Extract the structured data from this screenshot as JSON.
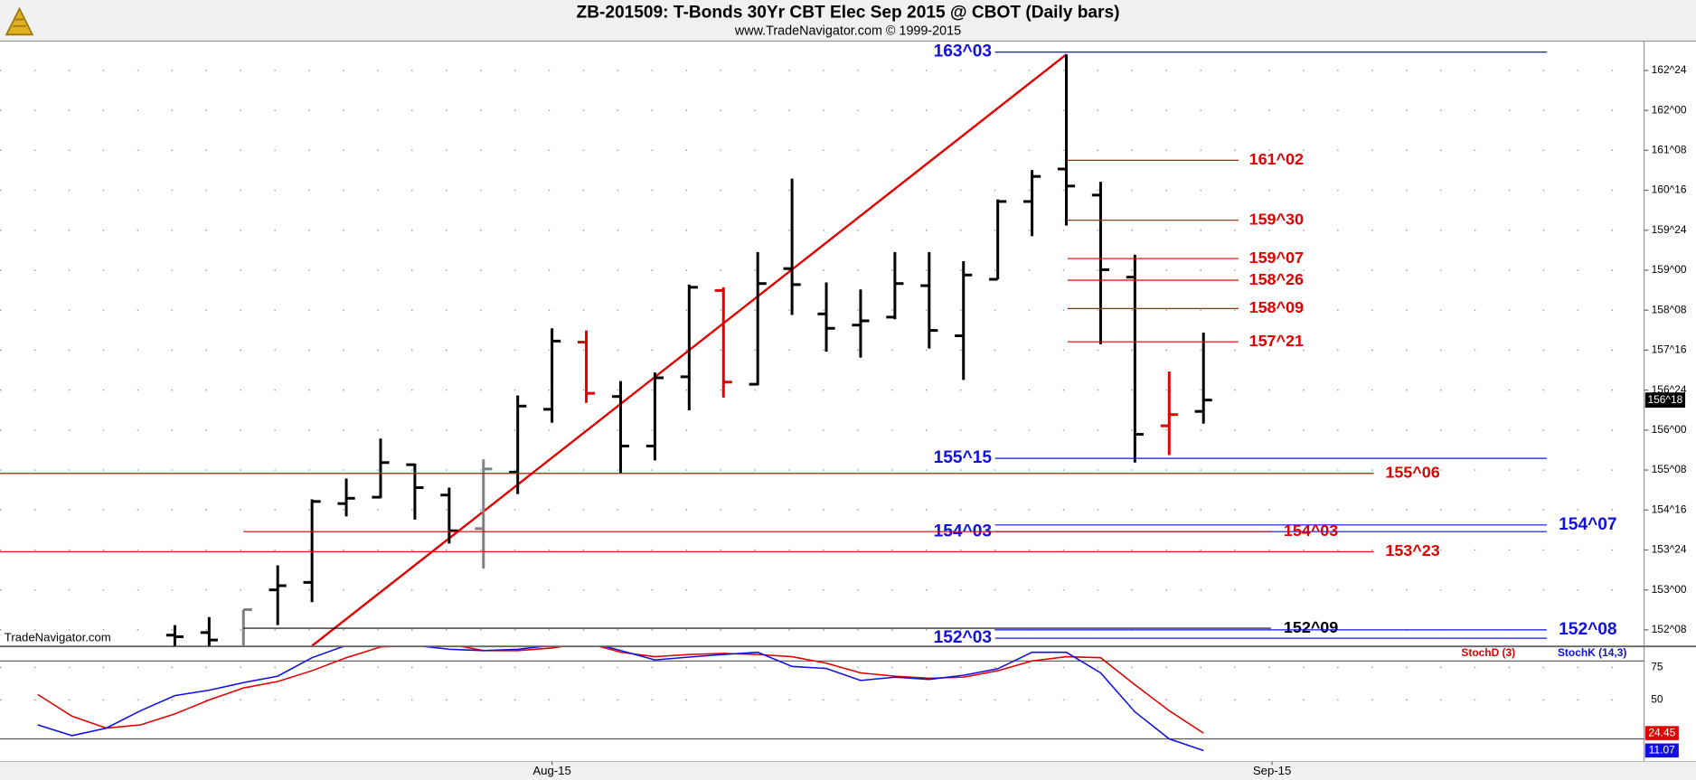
{
  "chart_data": [
    {
      "type": "ohlc",
      "title": "ZB-201509:  T-Bonds 30Yr CBT Elec Sep 2015 @ CBOT  (Daily bars)",
      "subtitle": "www.TradeNavigator.com © 1999-2015",
      "watermark": "TradeNavigator.com",
      "x": [
        0,
        1,
        2,
        3,
        4,
        5,
        6,
        7,
        8,
        9,
        10,
        11,
        12,
        13,
        14,
        15,
        16,
        17,
        18,
        19,
        20,
        21,
        22,
        23,
        24,
        25,
        26,
        27,
        28,
        29,
        30
      ],
      "open": [
        152.15,
        152.2,
        151.9,
        153.0,
        153.14,
        154.62,
        154.74,
        155.35,
        154.78,
        154.15,
        155.21,
        156.39,
        157.65,
        156.63,
        155.7,
        157.0,
        158.62,
        156.86,
        159.03,
        158.18,
        157.97,
        158.12,
        158.71,
        157.77,
        158.83,
        160.29,
        160.9,
        160.41,
        158.87,
        156.08,
        156.35
      ],
      "high": [
        152.34,
        152.49,
        152.63,
        153.46,
        154.7,
        155.09,
        155.84,
        155.37,
        154.92,
        155.45,
        156.65,
        157.91,
        157.87,
        156.92,
        157.08,
        158.73,
        158.68,
        159.34,
        160.72,
        158.77,
        158.64,
        159.34,
        159.34,
        159.17,
        160.33,
        160.88,
        163.05,
        160.66,
        159.29,
        157.1,
        157.83
      ],
      "low": [
        151.8,
        151.8,
        151.8,
        152.34,
        152.77,
        154.38,
        154.72,
        154.32,
        153.87,
        153.4,
        154.8,
        156.14,
        156.51,
        155.19,
        155.43,
        156.37,
        156.61,
        156.84,
        158.16,
        157.47,
        157.36,
        158.08,
        157.53,
        156.94,
        158.83,
        159.64,
        159.84,
        157.61,
        155.39,
        155.53,
        156.12
      ],
      "close": [
        152.12,
        152.06,
        152.63,
        153.08,
        154.66,
        154.72,
        155.39,
        154.92,
        154.11,
        155.27,
        156.45,
        157.67,
        156.69,
        155.7,
        156.98,
        158.68,
        156.9,
        158.75,
        158.73,
        157.91,
        158.05,
        158.75,
        157.87,
        158.91,
        160.29,
        160.76,
        160.58,
        159.01,
        155.92,
        156.29,
        156.5625
      ],
      "colors": [
        "#000000",
        "#000000",
        "#808080",
        "#000000",
        "#000000",
        "#000000",
        "#000000",
        "#000000",
        "#000000",
        "#808080",
        "#000000",
        "#000000",
        "#e00000",
        "#000000",
        "#000000",
        "#000000",
        "#e00000",
        "#000000",
        "#000000",
        "#000000",
        "#000000",
        "#000000",
        "#000000",
        "#000000",
        "#000000",
        "#000000",
        "#000000",
        "#000000",
        "#000000",
        "#e00000",
        "#000000"
      ],
      "xlim": [
        -5.1,
        42.85
      ],
      "xticks": [
        {
          "value": 11,
          "label": "Aug-15"
        },
        {
          "value": 32,
          "label": "Sep-15"
        }
      ],
      "ylim": [
        151.95,
        163.3
      ],
      "yticks": [
        {
          "value": 162.75,
          "label": "162^24"
        },
        {
          "value": 162,
          "label": "162^00"
        },
        {
          "value": 161.25,
          "label": "161^08"
        },
        {
          "value": 160.5,
          "label": "160^16"
        },
        {
          "value": 159.75,
          "label": "159^24"
        },
        {
          "value": 159,
          "label": "159^00"
        },
        {
          "value": 158.25,
          "label": "158^08"
        },
        {
          "value": 157.5,
          "label": "157^16"
        },
        {
          "value": 156.75,
          "label": "156^24"
        },
        {
          "value": 156,
          "label": "156^00"
        },
        {
          "value": 155.25,
          "label": "155^08"
        },
        {
          "value": 154.5,
          "label": "154^16"
        },
        {
          "value": 153.75,
          "label": "153^24"
        },
        {
          "value": 153,
          "label": "153^00"
        },
        {
          "value": 152.25,
          "label": "152^08"
        }
      ],
      "grid": true,
      "last_price": {
        "value": 156.5625,
        "label": "156^18"
      },
      "trendline": {
        "x": [
          4,
          26
        ],
        "y": [
          151.95,
          163.05
        ],
        "color": "#e00000"
      },
      "levels": [
        {
          "value": 163.09375,
          "label": "163^03",
          "color": "#1010e0"
        },
        {
          "value": 161.0625,
          "label": "161^02",
          "color": "#e00000"
        },
        {
          "value": 159.9375,
          "label": "159^30",
          "color": "#e00000"
        },
        {
          "value": 159.21875,
          "label": "159^07",
          "color": "#e00000"
        },
        {
          "value": 158.8125,
          "label": "158^26",
          "color": "#e00000"
        },
        {
          "value": 158.28125,
          "label": "158^09",
          "color": "#e00000"
        },
        {
          "value": 157.65625,
          "label": "157^21",
          "color": "#e00000"
        },
        {
          "value": 155.46875,
          "label": "155^15",
          "color": "#1010e0"
        },
        {
          "value": 155.1875,
          "label": "155^06",
          "color": "#e00000"
        },
        {
          "value": 154.21875,
          "label": "154^07",
          "color": "#1010e0"
        },
        {
          "value": 154.09375,
          "label": "154^03",
          "color": "#1010e0"
        },
        {
          "value": 154.09375,
          "label": "154^03",
          "color": "#e00000"
        },
        {
          "value": 153.71875,
          "label": "153^23",
          "color": "#e00000"
        },
        {
          "value": 152.28125,
          "label": "152^09",
          "color": "#000000"
        },
        {
          "value": 152.25,
          "label": "152^08",
          "color": "#1010e0"
        },
        {
          "value": 152.09375,
          "label": "152^03",
          "color": "#1010e0"
        }
      ]
    },
    {
      "type": "line",
      "x": [
        -4,
        -3,
        -2,
        -1,
        0,
        1,
        2,
        3,
        4,
        5,
        6,
        7,
        8,
        9,
        10,
        11,
        12,
        13,
        14,
        15,
        16,
        17,
        18,
        19,
        20,
        21,
        22,
        23,
        24,
        25,
        26,
        27,
        28,
        29,
        30
      ],
      "series": [
        {
          "name": "StochD (3)",
          "color": "#e00000",
          "values": [
            54.2,
            37.5,
            28.3,
            30.8,
            39.2,
            50,
            59.2,
            64.2,
            72.5,
            82.5,
            90.8,
            92,
            93,
            88,
            88,
            90,
            94,
            86.7,
            83.3,
            85,
            85.8,
            85,
            83.3,
            78.3,
            70.8,
            68.3,
            66.7,
            67.5,
            72.5,
            80,
            83.3,
            82.5,
            61.7,
            41.7,
            24.45
          ]
        },
        {
          "name": "StochK (14,3)",
          "color": "#1010e0",
          "values": [
            30.8,
            22.5,
            28.3,
            41.7,
            53.3,
            57.5,
            63.3,
            68.3,
            82.5,
            92,
            95,
            92,
            89,
            88,
            89,
            92,
            95,
            88,
            80.8,
            83,
            85,
            86.7,
            75.8,
            74.2,
            65,
            67.5,
            65.8,
            69,
            74,
            86.7,
            86.7,
            70.8,
            40.8,
            20,
            11.07
          ]
        }
      ],
      "xlim": [
        -5.1,
        42.85
      ],
      "ylim": [
        2.5,
        90.8
      ],
      "yticks": [
        50,
        75
      ],
      "reference_lines": [
        20,
        80
      ],
      "grid": true
    }
  ]
}
